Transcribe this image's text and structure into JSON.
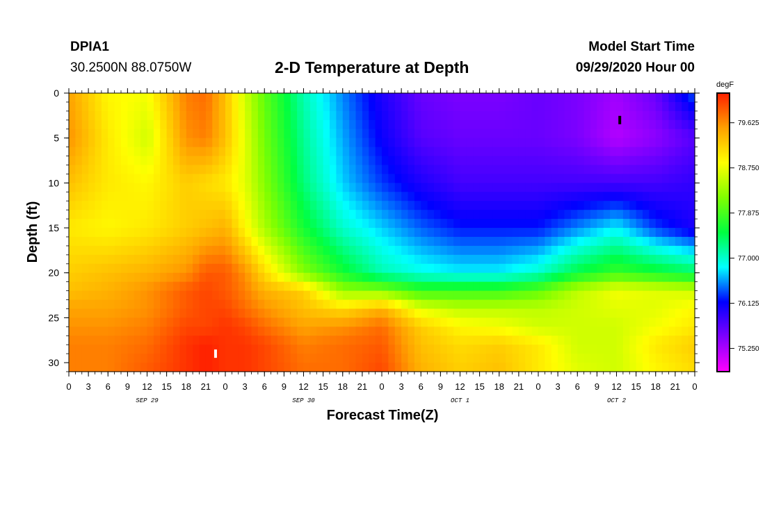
{
  "header": {
    "station": "DPIA1",
    "coords": "30.2500N 88.0750W",
    "title": "2-D Temperature at Depth",
    "model_start_label": "Model Start Time",
    "model_start_value": "09/29/2020 Hour 00"
  },
  "colors": {
    "colormap": [
      "#ff00ff",
      "#8000ff",
      "#0000ff",
      "#00ffff",
      "#00ff40",
      "#80ff00",
      "#ffff00",
      "#ffa000",
      "#ff2000"
    ],
    "marker_min": "#000000",
    "marker_max": "#ffffff"
  },
  "chart_data": {
    "type": "heatmap",
    "xlabel": "Forecast Time(Z)",
    "ylabel": "Depth (ft)",
    "x_range_hours": [
      0,
      96
    ],
    "xlim": [
      "2020-09-29T00:00Z",
      "2020-10-03T00:00Z"
    ],
    "x_tick_labels": [
      "0",
      "3",
      "6",
      "9",
      "12",
      "15",
      "18",
      "21",
      "0",
      "3",
      "6",
      "9",
      "12",
      "15",
      "18",
      "21",
      "0",
      "3",
      "6",
      "9",
      "12",
      "15",
      "18",
      "21",
      "0",
      "3",
      "6",
      "9",
      "12",
      "15",
      "18",
      "21",
      "0"
    ],
    "date_labels": [
      {
        "label": "SEP 29",
        "hour": 12
      },
      {
        "label": "SEP 30",
        "hour": 36
      },
      {
        "label": "OCT 1",
        "hour": 60
      },
      {
        "label": "OCT 2",
        "hour": 84
      }
    ],
    "ylim": [
      0,
      31
    ],
    "y_ticks": [
      "0",
      "5",
      "10",
      "15",
      "20",
      "25",
      "30"
    ],
    "y_inverted": true,
    "colorbar": {
      "unit": "degF",
      "min": 74.8,
      "max": 80.2,
      "tick_labels": [
        "79.625",
        "78.750",
        "77.875",
        "77.000",
        "76.125",
        "75.250"
      ],
      "tick_values": [
        79.625,
        78.75,
        77.875,
        77.0,
        76.125,
        75.25
      ]
    },
    "markers": [
      {
        "kind": "min",
        "hour": 84.5,
        "depth": 3
      },
      {
        "kind": "max",
        "hour": 22.5,
        "depth": 29
      }
    ],
    "profiles": {
      "hours": [
        0,
        6,
        12,
        18,
        21,
        24,
        27,
        30,
        36,
        42,
        48,
        54,
        60,
        66,
        72,
        78,
        84,
        90,
        96
      ],
      "depths": [
        0,
        5,
        10,
        15,
        20,
        22,
        24,
        26,
        28,
        31
      ],
      "temps": [
        [
          79.5,
          78.9,
          78.8,
          79.7,
          79.8,
          79.3,
          78.6,
          78.0,
          77.1,
          76.5,
          76.0,
          75.6,
          75.5,
          75.5,
          75.6,
          75.5,
          75.3,
          75.6,
          76.4
        ],
        [
          79.6,
          79.0,
          78.6,
          79.6,
          79.7,
          79.3,
          78.7,
          78.1,
          77.2,
          76.6,
          76.1,
          75.7,
          75.6,
          75.6,
          75.6,
          75.5,
          75.2,
          75.4,
          75.7
        ],
        [
          79.3,
          79.0,
          78.9,
          79.2,
          79.1,
          79.0,
          78.7,
          78.2,
          77.3,
          76.7,
          76.3,
          76.0,
          75.8,
          75.8,
          75.8,
          75.8,
          75.8,
          75.8,
          75.9
        ],
        [
          79.0,
          78.9,
          79.0,
          79.2,
          79.3,
          79.4,
          78.9,
          78.4,
          77.6,
          77.0,
          76.7,
          76.4,
          76.2,
          76.2,
          76.2,
          76.5,
          76.8,
          76.3,
          76.0
        ],
        [
          79.2,
          79.3,
          79.4,
          79.6,
          79.9,
          79.9,
          79.6,
          79.1,
          78.2,
          77.6,
          77.1,
          76.9,
          76.8,
          76.8,
          77.0,
          77.5,
          77.8,
          77.6,
          77.4
        ],
        [
          79.3,
          79.4,
          79.6,
          79.9,
          80.0,
          79.9,
          79.7,
          79.4,
          79.2,
          78.3,
          78.2,
          77.8,
          77.8,
          77.8,
          78.0,
          78.5,
          78.8,
          78.7,
          78.6
        ],
        [
          79.5,
          79.5,
          79.6,
          79.9,
          80.0,
          80.0,
          79.8,
          79.6,
          79.3,
          79.1,
          79.4,
          78.7,
          78.5,
          78.5,
          78.5,
          78.6,
          78.7,
          78.7,
          78.9
        ],
        [
          79.6,
          79.6,
          79.7,
          80.0,
          80.0,
          80.1,
          80.0,
          79.8,
          79.5,
          79.6,
          79.8,
          79.2,
          78.9,
          78.8,
          78.6,
          78.6,
          78.6,
          78.8,
          79.0
        ],
        [
          79.7,
          79.7,
          79.8,
          80.1,
          80.2,
          80.1,
          80.1,
          80.0,
          79.7,
          79.8,
          79.9,
          79.3,
          79.1,
          79.2,
          79.0,
          78.6,
          78.6,
          79.0,
          79.2
        ],
        [
          79.7,
          79.7,
          79.9,
          80.1,
          80.2,
          80.1,
          80.1,
          80.0,
          79.8,
          79.8,
          80.0,
          79.4,
          79.2,
          79.3,
          79.0,
          78.7,
          78.6,
          78.9,
          79.1
        ]
      ]
    }
  }
}
